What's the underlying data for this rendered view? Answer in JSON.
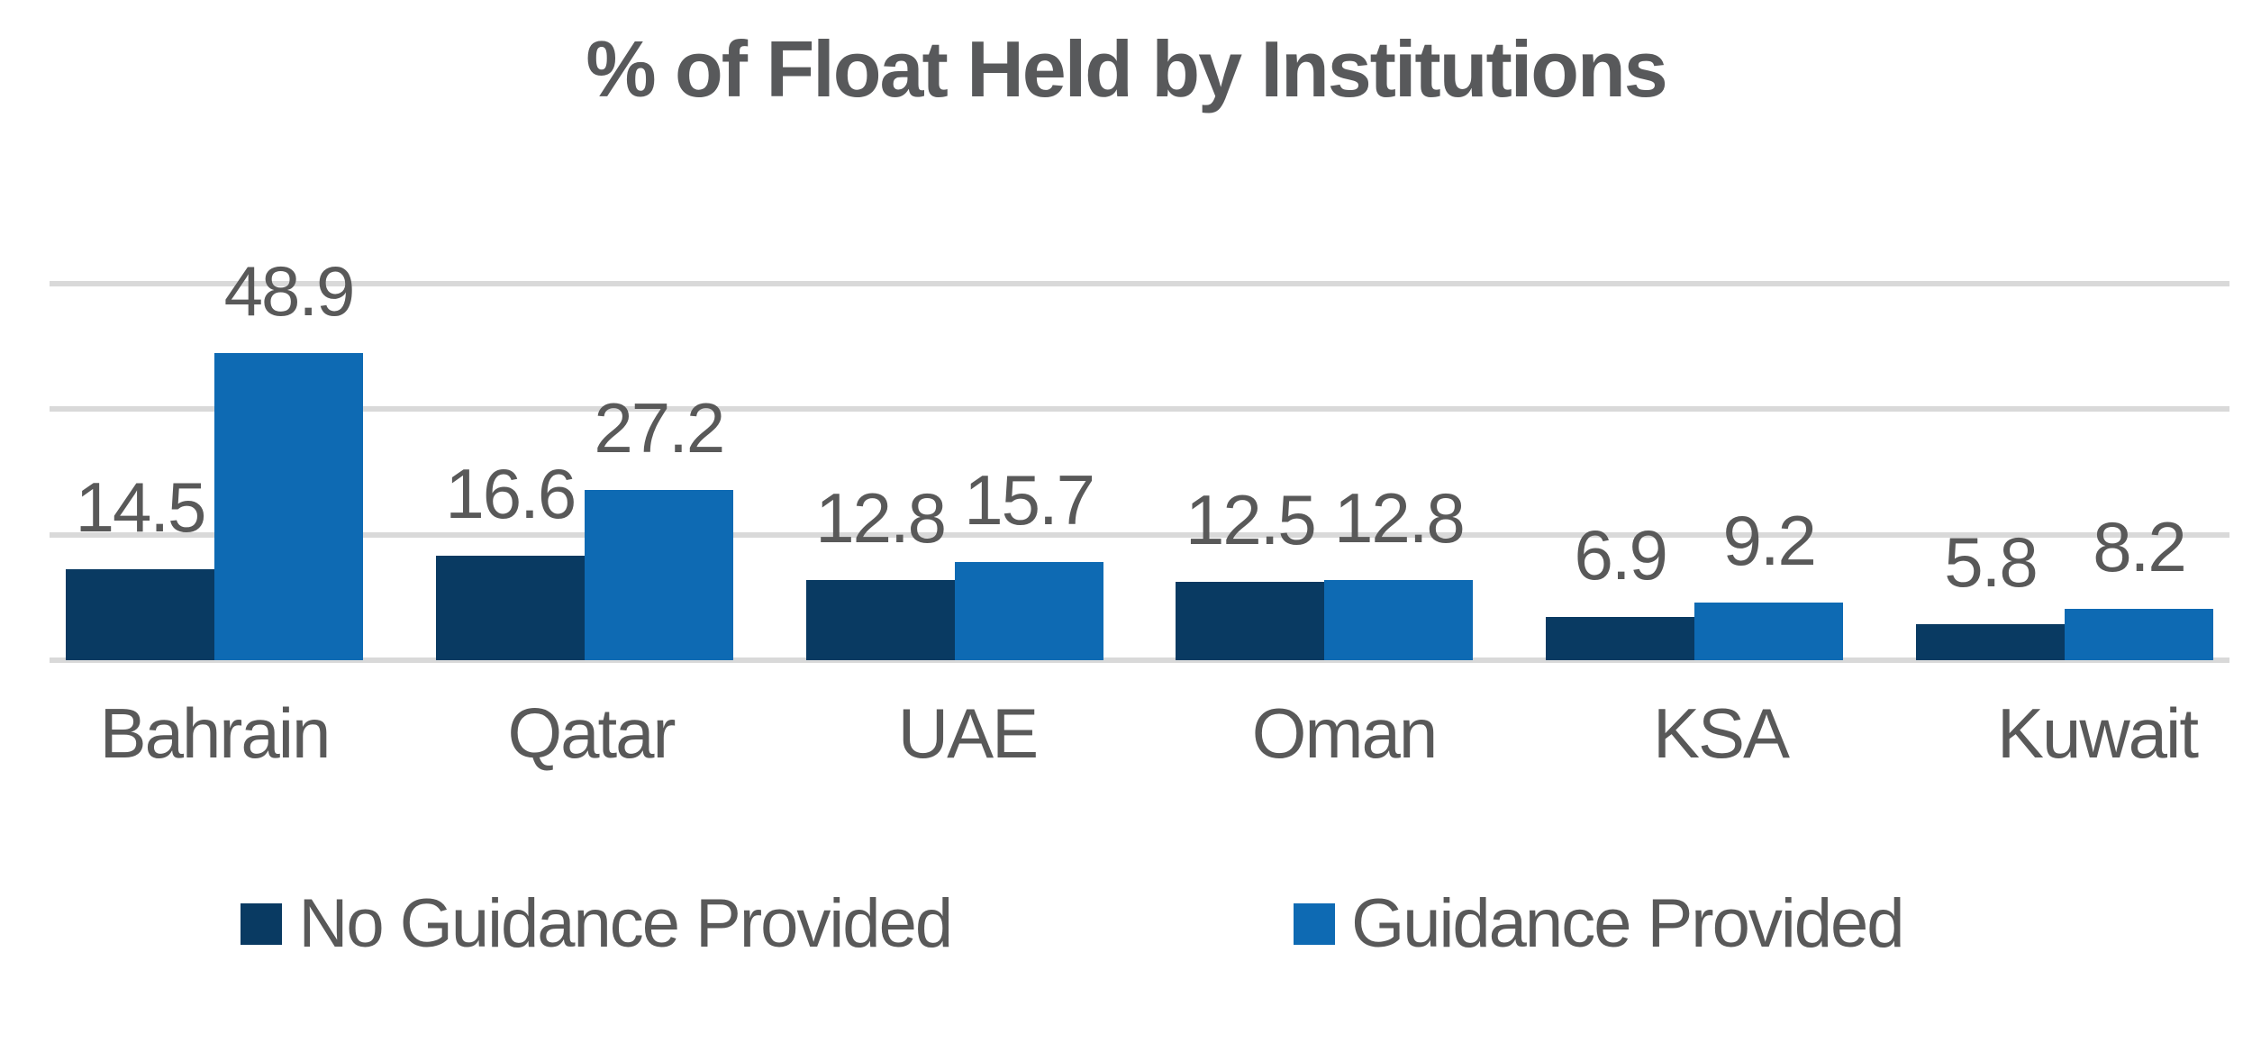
{
  "title": "% of Float Held by Institutions",
  "text_color": "#595959",
  "title_color": "#58595b",
  "gridline_color": "#d9d9d9",
  "chart_data": {
    "type": "bar",
    "title": "% of Float Held by Institutions",
    "categories": [
      "Bahrain",
      "Qatar",
      "UAE",
      "Oman",
      "KSA",
      "Kuwait"
    ],
    "series": [
      {
        "name": "No Guidance Provided",
        "color": "#093a62",
        "values": [
          14.5,
          16.6,
          12.8,
          12.5,
          6.9,
          5.8
        ]
      },
      {
        "name": "Guidance Provided",
        "color": "#0e6ab3",
        "values": [
          48.9,
          27.2,
          15.7,
          12.8,
          9.2,
          8.2
        ]
      }
    ],
    "xlabel": "",
    "ylabel": "",
    "ylim": [
      0,
      60
    ],
    "gridline_values": [
      0,
      20,
      40,
      60
    ],
    "grid": true,
    "y_tick_labels_visible": false,
    "data_labels": true,
    "legend_position": "bottom"
  }
}
